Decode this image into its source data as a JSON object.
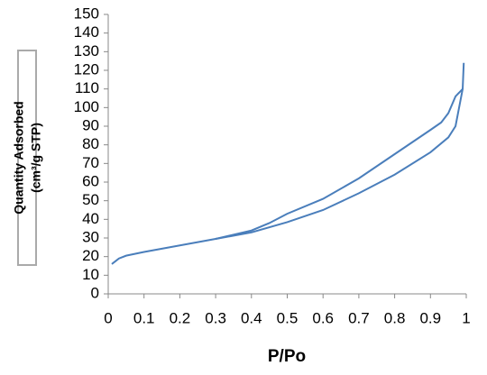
{
  "chart_data": {
    "type": "line",
    "x_label": "P/Po",
    "y_label": [
      "Quantity Adsorbed",
      "(cm³/g STP)"
    ],
    "series": [
      {
        "color": "#4a7ebb",
        "x": [
          0.01,
          0.03,
          0.05,
          0.1,
          0.2,
          0.3,
          0.4,
          0.5,
          0.6,
          0.7,
          0.8,
          0.9,
          0.95,
          0.97,
          0.98,
          0.99,
          0.993
        ],
        "values": [
          16,
          19,
          20.5,
          22.5,
          26,
          29.5,
          33,
          38.5,
          45,
          54,
          64,
          76,
          84,
          90,
          100,
          110,
          124
        ]
      },
      {
        "color": "#4a7ebb",
        "x": [
          0.99,
          0.97,
          0.95,
          0.93,
          0.9,
          0.8,
          0.7,
          0.6,
          0.5,
          0.45,
          0.4,
          0.3
        ],
        "values": [
          110,
          106,
          97,
          92,
          88,
          75,
          62,
          51,
          43,
          38,
          34,
          29.5
        ]
      }
    ],
    "xlim": [
      0,
      1
    ],
    "xticks": [
      0,
      0.1,
      0.2,
      0.3,
      0.4,
      0.5,
      0.6,
      0.7,
      0.8,
      0.9,
      1
    ],
    "ylim": [
      0,
      150
    ],
    "yticks": [
      0,
      10,
      20,
      30,
      40,
      50,
      60,
      70,
      80,
      90,
      100,
      110,
      120,
      130,
      140,
      150
    ],
    "grid": false
  }
}
